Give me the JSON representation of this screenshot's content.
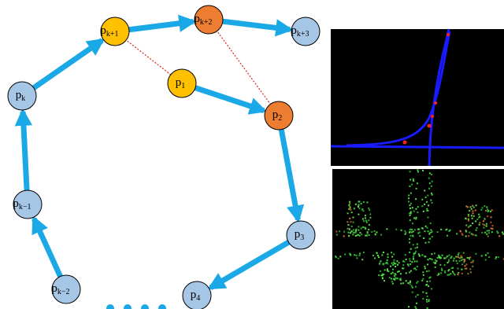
{
  "nodes": [
    {
      "base": "p",
      "sub": "k+1"
    },
    {
      "base": "p",
      "sub": "k+2"
    },
    {
      "base": "p",
      "sub": "k+3"
    },
    {
      "base": "p",
      "sub": "1"
    },
    {
      "base": "p",
      "sub": "2"
    },
    {
      "base": "p",
      "sub": "k"
    },
    {
      "base": "p",
      "sub": "k−1"
    },
    {
      "base": "p",
      "sub": "3"
    },
    {
      "base": "p",
      "sub": "k−2"
    },
    {
      "base": "p",
      "sub": "4"
    }
  ]
}
